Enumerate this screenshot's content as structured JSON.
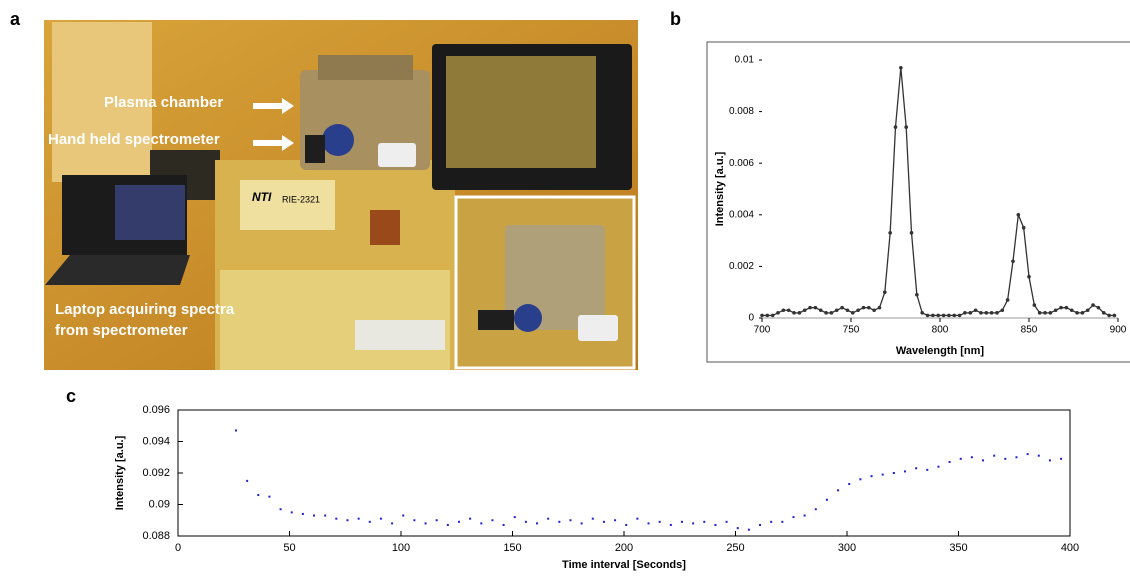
{
  "photo": {
    "panel": "a",
    "annotations": [
      "Plasma chamber",
      "Hand held spectrometer",
      "Laptop acquiring spectra",
      "from spectrometer"
    ],
    "signage": [
      "NTI",
      "RIE-2321"
    ]
  },
  "chart_data": [
    {
      "panel": "b",
      "type": "line",
      "color": "#333333",
      "markers": true,
      "x_label": "Wavelength [nm]",
      "y_label": "Intensity [a.u.]",
      "xlim": [
        700,
        900
      ],
      "xticks": [
        700,
        750,
        800,
        850,
        900
      ],
      "ylim": [
        0,
        0.01
      ],
      "yticks": [
        0,
        0.002,
        0.004,
        0.006,
        0.008,
        0.01
      ],
      "x": [
        700,
        703,
        706,
        709,
        712,
        715,
        718,
        721,
        724,
        727,
        730,
        733,
        736,
        739,
        742,
        745,
        748,
        751,
        754,
        757,
        760,
        763,
        766,
        769,
        772,
        775,
        778,
        781,
        784,
        787,
        790,
        793,
        796,
        799,
        802,
        805,
        808,
        811,
        814,
        817,
        820,
        823,
        826,
        829,
        832,
        835,
        838,
        841,
        844,
        847,
        850,
        853,
        856,
        859,
        862,
        865,
        868,
        871,
        874,
        877,
        880,
        883,
        886,
        889,
        892,
        895,
        898
      ],
      "values": [
        0.0001,
        0.0001,
        0.0001,
        0.0002,
        0.0003,
        0.0003,
        0.0002,
        0.0002,
        0.0003,
        0.0004,
        0.0004,
        0.0003,
        0.0002,
        0.0002,
        0.0003,
        0.0004,
        0.0003,
        0.0002,
        0.0003,
        0.0004,
        0.0004,
        0.0003,
        0.0004,
        0.001,
        0.0033,
        0.0074,
        0.0097,
        0.0074,
        0.0033,
        0.0009,
        0.0002,
        0.0001,
        0.0001,
        0.0001,
        0.0001,
        0.0001,
        0.0001,
        0.0001,
        0.0002,
        0.0002,
        0.0003,
        0.0002,
        0.0002,
        0.0002,
        0.0002,
        0.0003,
        0.0007,
        0.0022,
        0.004,
        0.0035,
        0.0016,
        0.0005,
        0.0002,
        0.0002,
        0.0002,
        0.0003,
        0.0004,
        0.0004,
        0.0003,
        0.0002,
        0.0002,
        0.0003,
        0.0005,
        0.0004,
        0.0002,
        0.0001,
        0.0001
      ]
    },
    {
      "panel": "c",
      "type": "scatter",
      "color": "#1f1fd6",
      "x_label": "Time interval [Seconds]",
      "y_label": "Intensity [a.u.]",
      "xlim": [
        0,
        400
      ],
      "xticks": [
        0,
        50,
        100,
        150,
        200,
        250,
        300,
        350,
        400
      ],
      "ylim": [
        0.088,
        0.096
      ],
      "yticks": [
        0.088,
        0.09,
        0.092,
        0.094,
        0.096
      ],
      "x": [
        26,
        31,
        36,
        41,
        46,
        51,
        56,
        61,
        66,
        71,
        76,
        81,
        86,
        91,
        96,
        101,
        106,
        111,
        116,
        121,
        126,
        131,
        136,
        141,
        146,
        151,
        156,
        161,
        166,
        171,
        176,
        181,
        186,
        191,
        196,
        201,
        206,
        211,
        216,
        221,
        226,
        231,
        236,
        241,
        246,
        251,
        256,
        261,
        266,
        271,
        276,
        281,
        286,
        291,
        296,
        301,
        306,
        311,
        316,
        321,
        326,
        331,
        336,
        341,
        346,
        351,
        356,
        361,
        366,
        371,
        376,
        381,
        386,
        391,
        396
      ],
      "values": [
        0.0947,
        0.0915,
        0.0906,
        0.0905,
        0.0897,
        0.0895,
        0.0894,
        0.0893,
        0.0893,
        0.0891,
        0.089,
        0.0891,
        0.0889,
        0.0891,
        0.0888,
        0.0893,
        0.089,
        0.0888,
        0.089,
        0.0887,
        0.0889,
        0.0891,
        0.0888,
        0.089,
        0.0887,
        0.0892,
        0.0889,
        0.0888,
        0.0891,
        0.0889,
        0.089,
        0.0888,
        0.0891,
        0.0889,
        0.089,
        0.0887,
        0.0891,
        0.0888,
        0.0889,
        0.0887,
        0.0889,
        0.0888,
        0.0889,
        0.0887,
        0.0889,
        0.0885,
        0.0884,
        0.0887,
        0.0889,
        0.0889,
        0.0892,
        0.0893,
        0.0897,
        0.0903,
        0.0909,
        0.0913,
        0.0916,
        0.0918,
        0.0919,
        0.092,
        0.0921,
        0.0923,
        0.0922,
        0.0924,
        0.0927,
        0.0929,
        0.093,
        0.0928,
        0.0931,
        0.0929,
        0.093,
        0.0932,
        0.0931,
        0.0928,
        0.0929
      ]
    }
  ]
}
